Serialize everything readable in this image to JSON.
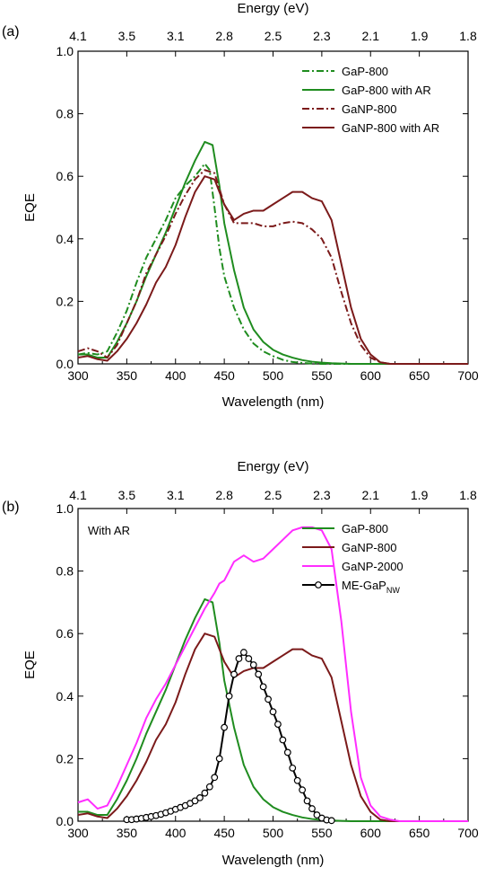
{
  "figure": {
    "panels": [
      "(a)",
      "(b)"
    ]
  },
  "chart_data": [
    {
      "panel": "(a)",
      "type": "line",
      "xlabel": "Wavelength (nm)",
      "ylabel": "EQE",
      "top_axis_label": "Energy (eV)",
      "xlim": [
        300,
        700
      ],
      "ylim": [
        0.0,
        1.0
      ],
      "x_ticks": [
        "300",
        "350",
        "400",
        "450",
        "500",
        "550",
        "600",
        "650",
        "700"
      ],
      "y_ticks": [
        "0.0",
        "0.2",
        "0.4",
        "0.6",
        "0.8",
        "1.0"
      ],
      "top_ticks": [
        "4.1",
        "3.5",
        "3.1",
        "2.8",
        "2.5",
        "2.3",
        "2.1",
        "1.9",
        "1.8"
      ],
      "grid": false,
      "legend_position": "top-right",
      "series": [
        {
          "name": "GaP-800",
          "color": "#1f8c1f",
          "dash": "dashdot",
          "x": [
            300,
            310,
            320,
            330,
            340,
            350,
            360,
            370,
            380,
            390,
            400,
            410,
            420,
            425,
            430,
            435,
            440,
            445,
            450,
            460,
            470,
            480,
            490,
            500,
            510,
            520,
            530,
            540,
            550,
            560,
            570,
            580,
            590,
            600,
            610,
            620,
            650,
            700
          ],
          "y": [
            0.03,
            0.035,
            0.03,
            0.04,
            0.1,
            0.17,
            0.26,
            0.34,
            0.4,
            0.46,
            0.53,
            0.57,
            0.6,
            0.62,
            0.64,
            0.62,
            0.5,
            0.37,
            0.28,
            0.18,
            0.11,
            0.065,
            0.04,
            0.025,
            0.013,
            0.006,
            0.003,
            0.001,
            0.0,
            0.0,
            0.0,
            0.0,
            0.0,
            0.0,
            0.0,
            0.0,
            0.0,
            0.0
          ]
        },
        {
          "name": "GaP-800 with AR",
          "color": "#1f8c1f",
          "dash": "solid",
          "x": [
            300,
            310,
            320,
            330,
            340,
            350,
            360,
            370,
            380,
            390,
            400,
            410,
            420,
            430,
            438,
            445,
            450,
            460,
            470,
            480,
            490,
            500,
            510,
            520,
            530,
            540,
            550,
            560,
            570,
            580,
            590,
            600,
            610,
            620,
            650,
            700
          ],
          "y": [
            0.03,
            0.03,
            0.02,
            0.02,
            0.07,
            0.13,
            0.2,
            0.28,
            0.35,
            0.42,
            0.5,
            0.58,
            0.65,
            0.71,
            0.7,
            0.57,
            0.45,
            0.3,
            0.18,
            0.11,
            0.07,
            0.045,
            0.03,
            0.02,
            0.012,
            0.007,
            0.004,
            0.002,
            0.001,
            0.0,
            0.0,
            0.0,
            0.0,
            0.0,
            0.0,
            0.0
          ]
        },
        {
          "name": "GaNP-800",
          "color": "#7b1a1a",
          "dash": "dashdot",
          "x": [
            300,
            310,
            320,
            330,
            340,
            350,
            360,
            370,
            380,
            390,
            400,
            410,
            420,
            430,
            440,
            450,
            460,
            470,
            480,
            490,
            500,
            510,
            520,
            530,
            540,
            550,
            560,
            570,
            580,
            590,
            600,
            610,
            620,
            650,
            700
          ],
          "y": [
            0.04,
            0.05,
            0.04,
            0.02,
            0.06,
            0.13,
            0.2,
            0.29,
            0.35,
            0.41,
            0.48,
            0.54,
            0.59,
            0.62,
            0.61,
            0.51,
            0.45,
            0.45,
            0.45,
            0.44,
            0.44,
            0.45,
            0.455,
            0.45,
            0.43,
            0.4,
            0.34,
            0.23,
            0.13,
            0.06,
            0.02,
            0.005,
            0.0,
            0.0,
            0.0
          ]
        },
        {
          "name": "GaNP-800 with AR",
          "color": "#7b1a1a",
          "dash": "solid",
          "x": [
            300,
            310,
            320,
            330,
            340,
            350,
            360,
            370,
            380,
            390,
            400,
            410,
            420,
            430,
            440,
            450,
            460,
            470,
            480,
            490,
            500,
            510,
            520,
            530,
            540,
            550,
            560,
            570,
            580,
            590,
            600,
            610,
            620,
            650,
            700
          ],
          "y": [
            0.02,
            0.025,
            0.015,
            0.01,
            0.04,
            0.08,
            0.13,
            0.19,
            0.26,
            0.31,
            0.38,
            0.47,
            0.55,
            0.6,
            0.59,
            0.51,
            0.46,
            0.48,
            0.49,
            0.49,
            0.51,
            0.53,
            0.55,
            0.55,
            0.53,
            0.52,
            0.46,
            0.32,
            0.18,
            0.08,
            0.03,
            0.005,
            0.0,
            0.0,
            0.0
          ]
        }
      ]
    },
    {
      "panel": "(b)",
      "type": "line",
      "xlabel": "Wavelength (nm)",
      "ylabel": "EQE",
      "top_axis_label": "Energy (eV)",
      "annotation": "With AR",
      "xlim": [
        300,
        700
      ],
      "ylim": [
        0.0,
        1.0
      ],
      "x_ticks": [
        "300",
        "350",
        "400",
        "450",
        "500",
        "550",
        "600",
        "650",
        "700"
      ],
      "y_ticks": [
        "0.0",
        "0.2",
        "0.4",
        "0.6",
        "0.8",
        "1.0"
      ],
      "top_ticks": [
        "4.1",
        "3.5",
        "3.1",
        "2.8",
        "2.5",
        "2.3",
        "2.1",
        "1.9",
        "1.8"
      ],
      "grid": false,
      "legend_position": "top-right",
      "series": [
        {
          "name": "GaP-800",
          "color": "#1f8c1f",
          "dash": "solid",
          "markers": false,
          "x": [
            300,
            310,
            320,
            330,
            340,
            350,
            360,
            370,
            380,
            390,
            400,
            410,
            420,
            430,
            438,
            445,
            450,
            460,
            470,
            480,
            490,
            500,
            510,
            520,
            530,
            540,
            550,
            560,
            570,
            580,
            590,
            600,
            610,
            620,
            650,
            700
          ],
          "y": [
            0.03,
            0.03,
            0.02,
            0.02,
            0.07,
            0.13,
            0.2,
            0.28,
            0.35,
            0.42,
            0.5,
            0.58,
            0.65,
            0.71,
            0.7,
            0.57,
            0.45,
            0.3,
            0.18,
            0.11,
            0.07,
            0.045,
            0.03,
            0.02,
            0.012,
            0.007,
            0.004,
            0.002,
            0.001,
            0.0,
            0.0,
            0.0,
            0.0,
            0.0,
            0.0,
            0.0
          ]
        },
        {
          "name": "GaNP-800",
          "color": "#7b1a1a",
          "dash": "solid",
          "markers": false,
          "x": [
            300,
            310,
            320,
            330,
            340,
            350,
            360,
            370,
            380,
            390,
            400,
            410,
            420,
            430,
            440,
            450,
            460,
            470,
            480,
            490,
            500,
            510,
            520,
            530,
            540,
            550,
            560,
            570,
            580,
            590,
            600,
            610,
            620,
            650,
            700
          ],
          "y": [
            0.02,
            0.025,
            0.015,
            0.01,
            0.04,
            0.08,
            0.13,
            0.19,
            0.26,
            0.31,
            0.38,
            0.47,
            0.55,
            0.6,
            0.59,
            0.51,
            0.46,
            0.48,
            0.49,
            0.49,
            0.51,
            0.53,
            0.55,
            0.55,
            0.53,
            0.52,
            0.46,
            0.32,
            0.18,
            0.08,
            0.03,
            0.005,
            0.0,
            0.0,
            0.0
          ]
        },
        {
          "name": "GaNP-2000",
          "color": "#ff2dff",
          "dash": "solid",
          "markers": false,
          "x": [
            300,
            305,
            310,
            320,
            330,
            340,
            350,
            360,
            370,
            380,
            390,
            400,
            410,
            420,
            430,
            440,
            445,
            450,
            460,
            470,
            480,
            490,
            500,
            510,
            520,
            530,
            540,
            550,
            560,
            570,
            580,
            590,
            600,
            610,
            620,
            630,
            650,
            700
          ],
          "y": [
            0.06,
            0.065,
            0.07,
            0.04,
            0.05,
            0.11,
            0.18,
            0.25,
            0.33,
            0.39,
            0.44,
            0.5,
            0.56,
            0.62,
            0.68,
            0.73,
            0.76,
            0.77,
            0.83,
            0.85,
            0.83,
            0.84,
            0.87,
            0.9,
            0.93,
            0.94,
            0.94,
            0.93,
            0.87,
            0.64,
            0.35,
            0.14,
            0.05,
            0.015,
            0.005,
            0.0,
            0.0,
            0.0
          ]
        },
        {
          "name": "ME-GaP",
          "name_subscript": "NW",
          "color": "#000000",
          "dash": "solid",
          "markers": true,
          "x": [
            350,
            355,
            360,
            365,
            370,
            375,
            380,
            385,
            390,
            395,
            400,
            405,
            410,
            415,
            420,
            425,
            430,
            435,
            440,
            445,
            450,
            455,
            460,
            465,
            470,
            475,
            480,
            485,
            490,
            495,
            500,
            505,
            510,
            515,
            520,
            525,
            530,
            535,
            540,
            545,
            550,
            555,
            560
          ],
          "y": [
            0.005,
            0.005,
            0.007,
            0.009,
            0.012,
            0.015,
            0.018,
            0.022,
            0.027,
            0.032,
            0.038,
            0.044,
            0.05,
            0.057,
            0.065,
            0.075,
            0.09,
            0.11,
            0.14,
            0.2,
            0.3,
            0.4,
            0.47,
            0.52,
            0.54,
            0.52,
            0.5,
            0.47,
            0.43,
            0.39,
            0.35,
            0.31,
            0.26,
            0.22,
            0.17,
            0.13,
            0.1,
            0.065,
            0.04,
            0.02,
            0.01,
            0.004,
            0.002
          ]
        }
      ]
    }
  ]
}
